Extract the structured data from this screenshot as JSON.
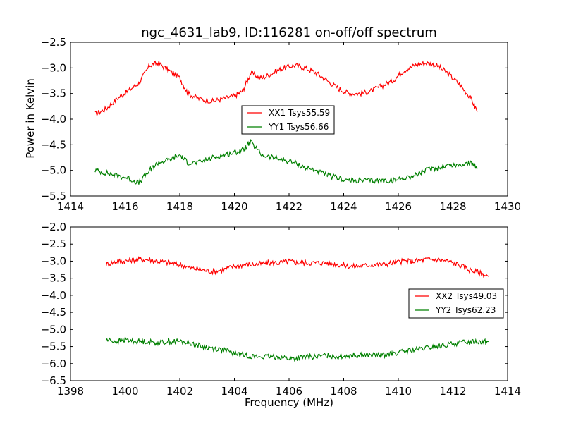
{
  "chart_data": [
    {
      "type": "line",
      "title": "ngc_4631_lab9, ID:116281 on-off/off spectrum",
      "xlabel": "",
      "ylabel": "Power in Kelvin",
      "xlim": [
        1414,
        1430
      ],
      "ylim": [
        -5.5,
        -2.5
      ],
      "xticks": [
        "1414",
        "1416",
        "1418",
        "1420",
        "1422",
        "1424",
        "1426",
        "1428",
        "1430"
      ],
      "yticks": [
        "−2.5",
        "−3.0",
        "−3.5",
        "−4.0",
        "−4.5",
        "−5.0",
        "−5.5"
      ],
      "grid": false,
      "legend": "center",
      "series": [
        {
          "name": "XX1 Tsys55.59",
          "color": "#ff0000",
          "x": [
            1414.9,
            1415.3,
            1415.7,
            1416.1,
            1416.5,
            1416.9,
            1417.2,
            1417.6,
            1418.0,
            1418.3,
            1418.7,
            1419.2,
            1419.6,
            1420.0,
            1420.3,
            1420.6,
            1421.0,
            1421.4,
            1421.8,
            1422.2,
            1422.6,
            1423.0,
            1423.4,
            1423.8,
            1424.2,
            1424.6,
            1425.0,
            1425.4,
            1425.8,
            1426.2,
            1426.6,
            1427.0,
            1427.4,
            1427.8,
            1428.2,
            1428.6,
            1428.9
          ],
          "y": [
            -3.9,
            -3.8,
            -3.6,
            -3.45,
            -3.3,
            -2.95,
            -2.9,
            -3.05,
            -3.2,
            -3.5,
            -3.6,
            -3.65,
            -3.6,
            -3.55,
            -3.45,
            -3.1,
            -3.2,
            -3.1,
            -3.0,
            -2.95,
            -3.0,
            -3.1,
            -3.25,
            -3.4,
            -3.5,
            -3.5,
            -3.45,
            -3.35,
            -3.25,
            -3.05,
            -2.95,
            -2.9,
            -2.95,
            -3.1,
            -3.3,
            -3.55,
            -3.85
          ]
        },
        {
          "name": "YY1 Tsys56.66",
          "color": "#008000",
          "x": [
            1414.9,
            1415.3,
            1415.7,
            1416.1,
            1416.5,
            1416.9,
            1417.2,
            1417.6,
            1418.0,
            1418.3,
            1418.7,
            1419.2,
            1419.6,
            1420.0,
            1420.3,
            1420.6,
            1421.0,
            1421.4,
            1421.8,
            1422.2,
            1422.6,
            1423.0,
            1423.4,
            1423.8,
            1424.2,
            1424.6,
            1425.0,
            1425.4,
            1425.8,
            1426.2,
            1426.6,
            1427.0,
            1427.4,
            1427.8,
            1428.2,
            1428.6,
            1428.9
          ],
          "y": [
            -5.0,
            -5.05,
            -5.1,
            -5.15,
            -5.25,
            -5.0,
            -4.85,
            -4.8,
            -4.7,
            -4.85,
            -4.85,
            -4.75,
            -4.7,
            -4.65,
            -4.6,
            -4.45,
            -4.7,
            -4.75,
            -4.8,
            -4.85,
            -4.95,
            -5.0,
            -5.1,
            -5.15,
            -5.2,
            -5.2,
            -5.2,
            -5.2,
            -5.2,
            -5.15,
            -5.1,
            -5.0,
            -4.95,
            -4.9,
            -4.9,
            -4.85,
            -4.95
          ]
        }
      ]
    },
    {
      "type": "line",
      "title": "",
      "xlabel": "Frequency (MHz)",
      "ylabel": "",
      "xlim": [
        1398,
        1414
      ],
      "ylim": [
        -6.5,
        -2.0
      ],
      "xticks": [
        "1398",
        "1400",
        "1402",
        "1404",
        "1406",
        "1408",
        "1410",
        "1412",
        "1414"
      ],
      "yticks": [
        "−2.0",
        "−2.5",
        "−3.0",
        "−3.5",
        "−4.0",
        "−4.5",
        "−5.0",
        "−5.5",
        "−6.0",
        "−6.5"
      ],
      "grid": false,
      "legend": "center-right",
      "series": [
        {
          "name": "XX2 Tsys49.03",
          "color": "#ff0000",
          "x": [
            1399.3,
            1399.7,
            1400.0,
            1400.4,
            1400.8,
            1401.2,
            1401.6,
            1402.0,
            1402.4,
            1402.8,
            1403.2,
            1403.6,
            1404.0,
            1404.4,
            1404.8,
            1405.2,
            1405.6,
            1406.0,
            1406.3,
            1406.6,
            1407.0,
            1407.4,
            1407.8,
            1408.2,
            1408.6,
            1409.0,
            1409.4,
            1409.8,
            1410.2,
            1410.6,
            1411.0,
            1411.4,
            1411.8,
            1412.2,
            1412.6,
            1413.0,
            1413.3
          ],
          "y": [
            -3.1,
            -3.0,
            -3.0,
            -2.95,
            -2.95,
            -3.0,
            -3.05,
            -3.1,
            -3.2,
            -3.25,
            -3.3,
            -3.25,
            -3.15,
            -3.1,
            -3.1,
            -3.05,
            -3.05,
            -3.0,
            -3.05,
            -3.05,
            -3.05,
            -3.05,
            -3.1,
            -3.15,
            -3.15,
            -3.1,
            -3.1,
            -3.05,
            -3.0,
            -3.0,
            -2.95,
            -2.95,
            -3.0,
            -3.1,
            -3.25,
            -3.35,
            -3.45
          ]
        },
        {
          "name": "YY2 Tsys62.23",
          "color": "#008000",
          "x": [
            1399.3,
            1399.7,
            1400.0,
            1400.4,
            1400.8,
            1401.2,
            1401.6,
            1402.0,
            1402.4,
            1402.8,
            1403.2,
            1403.6,
            1404.0,
            1404.4,
            1404.8,
            1405.2,
            1405.6,
            1406.0,
            1406.3,
            1406.6,
            1407.0,
            1407.4,
            1407.8,
            1408.2,
            1408.6,
            1409.0,
            1409.4,
            1409.8,
            1410.2,
            1410.6,
            1411.0,
            1411.4,
            1411.8,
            1412.2,
            1412.6,
            1413.0,
            1413.3
          ],
          "y": [
            -5.3,
            -5.35,
            -5.3,
            -5.35,
            -5.35,
            -5.4,
            -5.35,
            -5.35,
            -5.4,
            -5.5,
            -5.55,
            -5.6,
            -5.7,
            -5.75,
            -5.8,
            -5.8,
            -5.8,
            -5.85,
            -5.85,
            -5.8,
            -5.8,
            -5.75,
            -5.8,
            -5.75,
            -5.75,
            -5.75,
            -5.75,
            -5.7,
            -5.65,
            -5.6,
            -5.55,
            -5.5,
            -5.45,
            -5.4,
            -5.35,
            -5.35,
            -5.35
          ]
        }
      ]
    }
  ]
}
